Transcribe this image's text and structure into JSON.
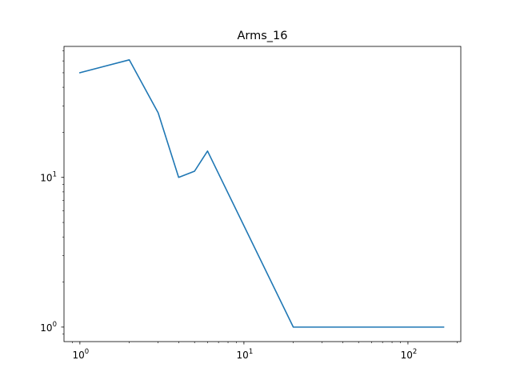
{
  "chart_data": {
    "type": "line",
    "title": "Arms_16",
    "xlabel": "",
    "ylabel": "",
    "xscale": "log",
    "yscale": "log",
    "xlim": [
      0.8,
      210
    ],
    "ylim": [
      0.8,
      75
    ],
    "grid": false,
    "x_tick_labels": [
      {
        "base": "10",
        "exp": "0",
        "value": 1
      },
      {
        "base": "10",
        "exp": "1",
        "value": 10
      },
      {
        "base": "10",
        "exp": "2",
        "value": 100
      }
    ],
    "y_tick_labels": [
      {
        "base": "10",
        "exp": "0",
        "value": 1
      },
      {
        "base": "10",
        "exp": "1",
        "value": 10
      }
    ],
    "series": [
      {
        "color": "#1f77b4",
        "x": [
          1,
          2,
          3,
          4,
          5,
          6,
          20,
          165
        ],
        "y": [
          50,
          61,
          27,
          10,
          11,
          15,
          1,
          1
        ]
      }
    ]
  }
}
